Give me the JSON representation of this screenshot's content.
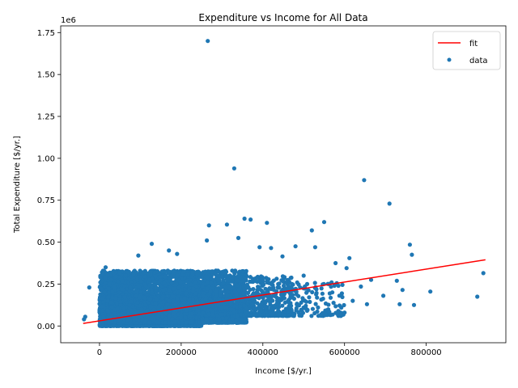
{
  "chart_data": {
    "type": "scatter",
    "title": "Expenditure vs Income for All Data",
    "xlabel": "Income [$/yr.]",
    "ylabel": "Total Expenditure [$/yr.]",
    "y_offset_label": "1e6",
    "xlim": [
      -95000,
      995000
    ],
    "ylim": [
      -100000,
      1790000
    ],
    "x_ticks": [
      0,
      200000,
      400000,
      600000,
      800000
    ],
    "x_tick_labels": [
      "0",
      "200000",
      "400000",
      "600000",
      "800000"
    ],
    "y_ticks": [
      0,
      250000,
      500000,
      750000,
      1000000,
      1250000,
      1500000,
      1750000
    ],
    "y_tick_labels": [
      "0.00",
      "0.25",
      "0.50",
      "0.75",
      "1.00",
      "1.25",
      "1.50",
      "1.75"
    ],
    "grid": false,
    "legend_position": "top-right",
    "colors": {
      "data": "#1f77b4",
      "fit": "#ff0000"
    },
    "series": [
      {
        "name": "fit",
        "kind": "line",
        "x": [
          -40000,
          945000
        ],
        "y": [
          15000,
          395000
        ]
      },
      {
        "name": "data",
        "kind": "scatter",
        "outliers": [
          [
            265000,
            1700000
          ],
          [
            330000,
            940000
          ],
          [
            648000,
            870000
          ],
          [
            710000,
            730000
          ],
          [
            268000,
            600000
          ],
          [
            312000,
            605000
          ],
          [
            355000,
            640000
          ],
          [
            370000,
            635000
          ],
          [
            410000,
            615000
          ],
          [
            550000,
            620000
          ],
          [
            520000,
            570000
          ],
          [
            128000,
            490000
          ],
          [
            760000,
            485000
          ],
          [
            765000,
            425000
          ],
          [
            940000,
            315000
          ],
          [
            925000,
            175000
          ],
          [
            810000,
            205000
          ],
          [
            770000,
            125000
          ],
          [
            735000,
            130000
          ],
          [
            742000,
            215000
          ],
          [
            695000,
            180000
          ],
          [
            728000,
            270000
          ],
          [
            665000,
            275000
          ],
          [
            612000,
            405000
          ],
          [
            605000,
            345000
          ],
          [
            578000,
            375000
          ],
          [
            528000,
            470000
          ],
          [
            480000,
            475000
          ],
          [
            448000,
            415000
          ],
          [
            420000,
            465000
          ],
          [
            392000,
            470000
          ],
          [
            340000,
            525000
          ],
          [
            263000,
            510000
          ],
          [
            -35000,
            55000
          ],
          [
            -38000,
            40000
          ],
          [
            -25000,
            230000
          ],
          [
            5000,
            270000
          ],
          [
            15000,
            350000
          ],
          [
            170000,
            450000
          ],
          [
            190000,
            430000
          ],
          [
            95000,
            420000
          ],
          [
            500000,
            300000
          ],
          [
            585000,
            240000
          ],
          [
            640000,
            235000
          ],
          [
            620000,
            150000
          ],
          [
            560000,
            90000
          ],
          [
            535000,
            110000
          ],
          [
            600000,
            80000
          ],
          [
            655000,
            130000
          ],
          [
            505000,
            120000
          ]
        ],
        "clusters": [
          {
            "x": [
              0,
              250000
            ],
            "y": [
              0,
              330000
            ],
            "count": 3600
          },
          {
            "x": [
              20000,
              230000
            ],
            "y": [
              20000,
              180000
            ],
            "count": 2800
          },
          {
            "x": [
              250000,
              360000
            ],
            "y": [
              20000,
              330000
            ],
            "count": 1300
          },
          {
            "x": [
              330000,
              470000
            ],
            "y": [
              60000,
              300000
            ],
            "count": 450
          },
          {
            "x": [
              460000,
              600000
            ],
            "y": [
              60000,
              270000
            ],
            "count": 140
          }
        ]
      }
    ]
  }
}
